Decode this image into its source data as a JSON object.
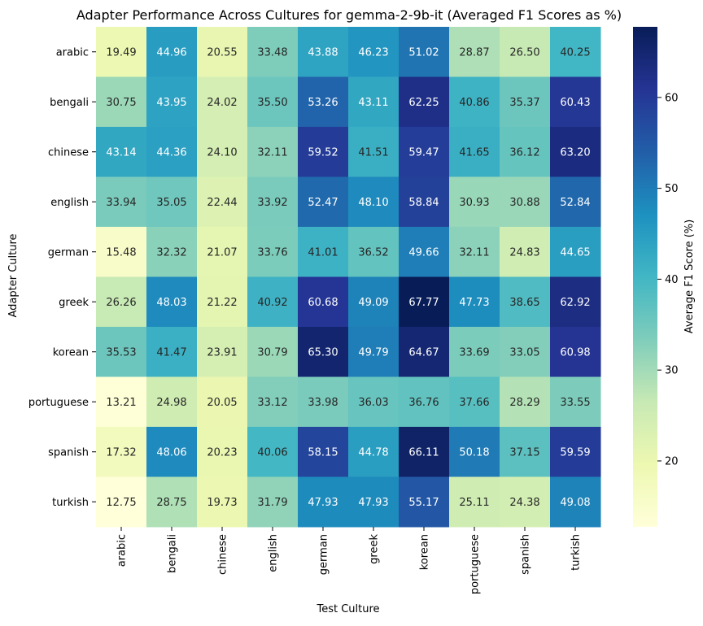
{
  "chart_data": {
    "type": "heatmap",
    "title": "Adapter Performance Across Cultures for gemma-2-9b-it (Averaged F1 Scores as %)",
    "xlabel": "Test Culture",
    "ylabel": "Adapter Culture",
    "colorbar_label": "Average F1 Score (%)",
    "colormap": "YlGnBu",
    "color_range": [
      12.75,
      67.77
    ],
    "colorbar_ticks": [
      20,
      30,
      40,
      50,
      60
    ],
    "x_categories": [
      "arabic",
      "bengali",
      "chinese",
      "english",
      "german",
      "greek",
      "korean",
      "portuguese",
      "spanish",
      "turkish"
    ],
    "y_categories": [
      "arabic",
      "bengali",
      "chinese",
      "english",
      "german",
      "greek",
      "korean",
      "portuguese",
      "spanish",
      "turkish"
    ],
    "values": [
      [
        19.49,
        44.96,
        20.55,
        33.48,
        43.88,
        46.23,
        51.02,
        28.87,
        26.5,
        40.25
      ],
      [
        30.75,
        43.95,
        24.02,
        35.5,
        53.26,
        43.11,
        62.25,
        40.86,
        35.37,
        60.43
      ],
      [
        43.14,
        44.36,
        24.1,
        32.11,
        59.52,
        41.51,
        59.47,
        41.65,
        36.12,
        63.2
      ],
      [
        33.94,
        35.05,
        22.44,
        33.92,
        52.47,
        48.1,
        58.84,
        30.93,
        30.88,
        52.84
      ],
      [
        15.48,
        32.32,
        21.07,
        33.76,
        41.01,
        36.52,
        49.66,
        32.11,
        24.83,
        44.65
      ],
      [
        26.26,
        48.03,
        21.22,
        40.92,
        60.68,
        49.09,
        67.77,
        47.73,
        38.65,
        62.92
      ],
      [
        35.53,
        41.47,
        23.91,
        30.79,
        65.3,
        49.79,
        64.67,
        33.69,
        33.05,
        60.98
      ],
      [
        13.21,
        24.98,
        20.05,
        33.12,
        33.98,
        36.03,
        36.76,
        37.66,
        28.29,
        33.55
      ],
      [
        17.32,
        48.06,
        20.23,
        40.06,
        58.15,
        44.78,
        66.11,
        50.18,
        37.15,
        59.59
      ],
      [
        12.75,
        28.75,
        19.73,
        31.79,
        47.93,
        47.93,
        55.17,
        25.11,
        24.38,
        49.08
      ]
    ]
  }
}
